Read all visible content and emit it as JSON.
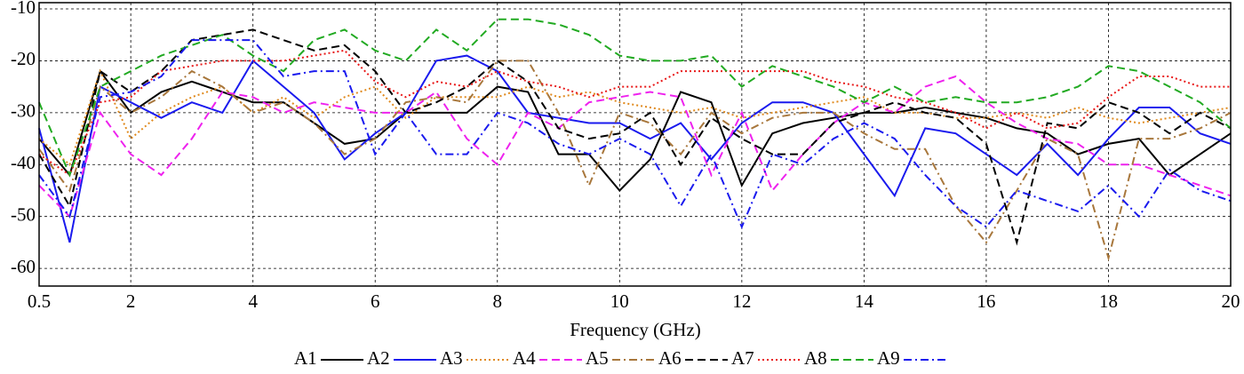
{
  "chart_data": {
    "type": "line",
    "xlabel": "Frequency (GHz)",
    "xlim": [
      0.5,
      20
    ],
    "xticks": [
      0.5,
      2,
      4,
      6,
      8,
      10,
      12,
      14,
      16,
      18,
      20
    ],
    "ylim": [
      -63.4,
      -8.8
    ],
    "yticks": [
      -10,
      -20,
      -30,
      -40,
      -50,
      -60
    ],
    "grid": true,
    "legend": "bottom",
    "x": [
      0.5,
      1,
      1.5,
      2,
      2.5,
      3,
      3.5,
      4,
      4.5,
      5,
      5.5,
      6,
      6.5,
      7,
      7.5,
      8,
      8.5,
      9,
      9.5,
      10,
      10.5,
      11,
      11.5,
      12,
      12.5,
      13,
      13.5,
      14,
      14.5,
      15,
      15.5,
      16,
      16.5,
      17,
      17.5,
      18,
      18.5,
      19,
      19.5,
      20
    ],
    "series": [
      {
        "name": "A1",
        "color": "#000000",
        "dash": "solid",
        "values": [
          -35,
          -42,
          -22,
          -30,
          -26,
          -24,
          -26,
          -28,
          -28,
          -32,
          -36,
          -35,
          -30,
          -30,
          -30,
          -25,
          -26,
          -38,
          -38,
          -45,
          -39,
          -26,
          -28,
          -44,
          -34,
          -32,
          -31,
          -30,
          -30,
          -29,
          -30,
          -31,
          -33,
          -34,
          -38,
          -36,
          -35,
          -42,
          -38,
          -34
        ]
      },
      {
        "name": "A2",
        "color": "#1a1aee",
        "dash": "solid",
        "values": [
          -33,
          -55,
          -25,
          -28,
          -31,
          -28,
          -30,
          -20,
          -25,
          -30,
          -39,
          -34,
          -30,
          -20,
          -19,
          -22,
          -30,
          -31,
          -32,
          -32,
          -35,
          -32,
          -39,
          -32,
          -28,
          -28,
          -30,
          -38,
          -46,
          -33,
          -34,
          -38,
          -42,
          -36,
          -42,
          -35,
          -29,
          -29,
          -34,
          -36
        ]
      },
      {
        "name": "A3",
        "color": "#e08a1e",
        "dash": "dotted",
        "values": [
          -35,
          -40,
          -22,
          -35,
          -30,
          -27,
          -25,
          -30,
          -27,
          -31,
          -27,
          -25,
          -31,
          -27,
          -27,
          -27,
          -25,
          -27,
          -26,
          -28,
          -29,
          -30,
          -29,
          -31,
          -30,
          -29,
          -28,
          -27,
          -30,
          -30,
          -31,
          -31,
          -30,
          -31,
          -29,
          -31,
          -32,
          -31,
          -30,
          -29
        ]
      },
      {
        "name": "A4",
        "color": "#ee22ee",
        "dash": "dashed",
        "values": [
          -44,
          -50,
          -30,
          -38,
          -42,
          -35,
          -26,
          -27,
          -30,
          -28,
          -29,
          -30,
          -30,
          -26,
          -35,
          -40,
          -30,
          -33,
          -28,
          -27,
          -26,
          -27,
          -42,
          -30,
          -45,
          -38,
          -32,
          -28,
          -30,
          -25,
          -23,
          -28,
          -32,
          -35,
          -36,
          -40,
          -40,
          -42,
          -44,
          -46
        ]
      },
      {
        "name": "A5",
        "color": "#a8773c",
        "dash": "dashdot",
        "values": [
          -37,
          -45,
          -25,
          -30,
          -27,
          -22,
          -25,
          -30,
          -28,
          -32,
          -38,
          -35,
          -28,
          -27,
          -28,
          -20,
          -20,
          -30,
          -44,
          -30,
          -32,
          -38,
          -30,
          -34,
          -31,
          -30,
          -30,
          -34,
          -37,
          -37,
          -48,
          -55,
          -45,
          -35,
          -38,
          -58,
          -35,
          -35,
          -33,
          -30
        ]
      },
      {
        "name": "A6",
        "color": "#000000",
        "dash": "dashed",
        "values": [
          -38,
          -48,
          -22,
          -26,
          -22,
          -16,
          -15,
          -14,
          -16,
          -18,
          -17,
          -22,
          -30,
          -28,
          -25,
          -20,
          -24,
          -33,
          -35,
          -34,
          -30,
          -40,
          -31,
          -35,
          -38,
          -38,
          -32,
          -30,
          -28,
          -30,
          -31,
          -36,
          -55,
          -32,
          -33,
          -28,
          -30,
          -34,
          -30,
          -33
        ]
      },
      {
        "name": "A7",
        "color": "#e81818",
        "dash": "dotted",
        "values": [
          -38,
          -42,
          -28,
          -27,
          -22,
          -21,
          -20,
          -20,
          -20,
          -19,
          -18,
          -24,
          -27,
          -24,
          -25,
          -22,
          -24,
          -25,
          -27,
          -25,
          -25,
          -22,
          -22,
          -22,
          -22,
          -22,
          -24,
          -25,
          -27,
          -28,
          -30,
          -33,
          -30,
          -33,
          -32,
          -27,
          -23,
          -23,
          -25,
          -25
        ]
      },
      {
        "name": "A8",
        "color": "#22aa22",
        "dash": "dashed",
        "values": [
          -28,
          -42,
          -25,
          -22,
          -19,
          -17,
          -15,
          -19,
          -22,
          -16,
          -14,
          -18,
          -20,
          -14,
          -18,
          -12,
          -12,
          -13,
          -15,
          -19,
          -20,
          -20,
          -19,
          -25,
          -21,
          -23,
          -25,
          -28,
          -25,
          -28,
          -27,
          -28,
          -28,
          -27,
          -25,
          -21,
          -22,
          -25,
          -28,
          -33
        ]
      },
      {
        "name": "A9",
        "color": "#1a1aee",
        "dash": "dashdot",
        "values": [
          -42,
          -50,
          -27,
          -26,
          -23,
          -16,
          -16,
          -16,
          -23,
          -22,
          -22,
          -38,
          -30,
          -38,
          -38,
          -30,
          -32,
          -36,
          -38,
          -35,
          -38,
          -48,
          -38,
          -52,
          -38,
          -40,
          -35,
          -32,
          -35,
          -42,
          -48,
          -52,
          -45,
          -47,
          -49,
          -44,
          -50,
          -41,
          -45,
          -47
        ]
      }
    ]
  }
}
